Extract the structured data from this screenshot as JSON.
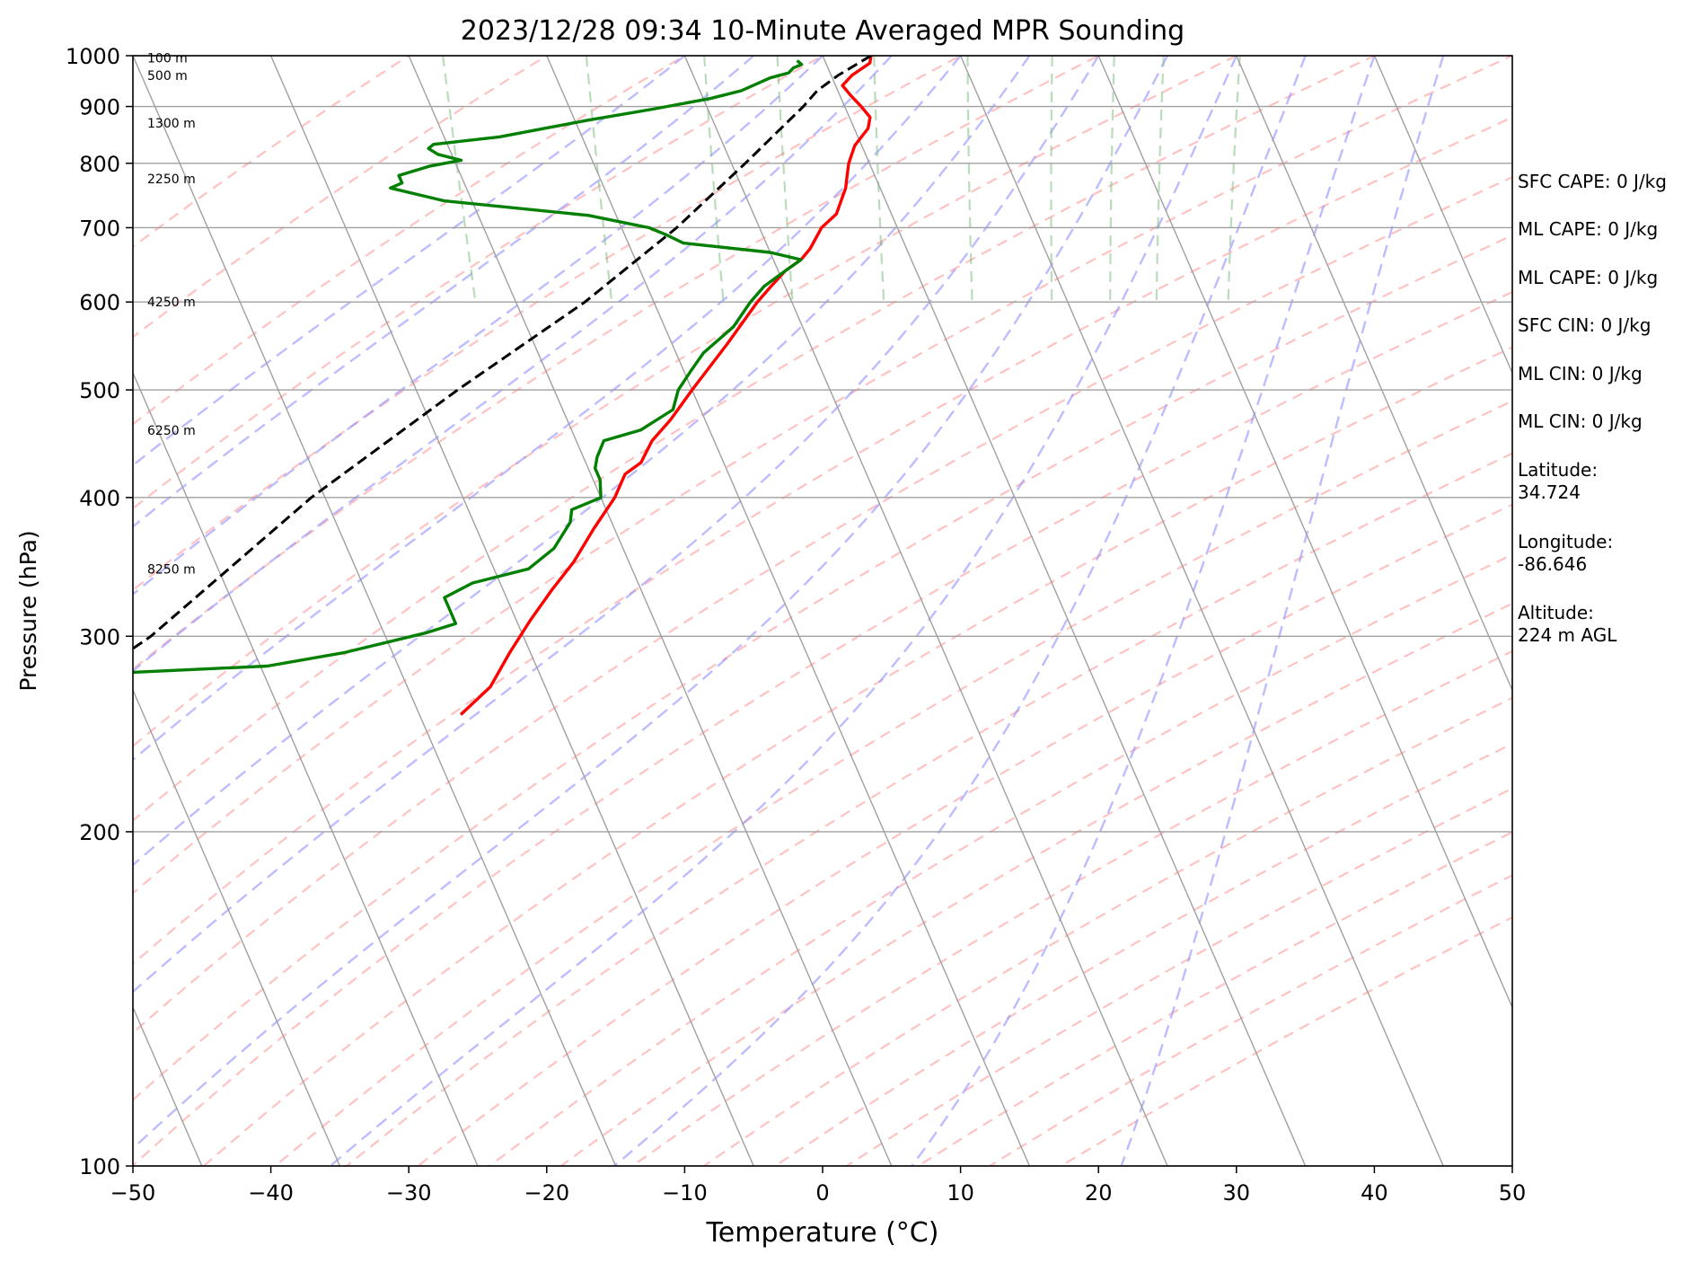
{
  "chart_data": {
    "type": "line",
    "title": "2023/12/28 09:34 10-Minute Averaged MPR Sounding",
    "xlabel": "Temperature (°C)",
    "ylabel": "Pressure (hPa)",
    "xlim": [
      -50,
      50
    ],
    "ylim": [
      1000,
      100
    ],
    "y_scale": "log",
    "skew_t": true,
    "grid": true,
    "x_ticks": [
      "−50",
      "−40",
      "−30",
      "−20",
      "−10",
      "0",
      "10",
      "20",
      "30",
      "40",
      "50"
    ],
    "y_ticks": [
      "100",
      "200",
      "300",
      "400",
      "500",
      "600",
      "700",
      "800",
      "900",
      "1000"
    ],
    "height_labels": [
      {
        "text": "8250 m",
        "p": 345
      },
      {
        "text": "6250 m",
        "p": 460
      },
      {
        "text": "4250 m",
        "p": 600
      },
      {
        "text": "2250 m",
        "p": 775
      },
      {
        "text": "1300 m",
        "p": 870
      },
      {
        "text": "500 m",
        "p": 960
      },
      {
        "text": "100 m",
        "p": 995
      }
    ],
    "series": [
      {
        "color": "#ff0000",
        "points": [
          {
            "p": 1000,
            "t": 3.5
          },
          {
            "p": 985,
            "t": 3.2
          },
          {
            "p": 960,
            "t": 1.5
          },
          {
            "p": 940,
            "t": 0.5
          },
          {
            "p": 920,
            "t": 0.8
          },
          {
            "p": 900,
            "t": 1.2
          },
          {
            "p": 880,
            "t": 1.5
          },
          {
            "p": 860,
            "t": 1.0
          },
          {
            "p": 830,
            "t": -0.5
          },
          {
            "p": 800,
            "t": -1.5
          },
          {
            "p": 780,
            "t": -2.0
          },
          {
            "p": 760,
            "t": -2.5
          },
          {
            "p": 720,
            "t": -4.0
          },
          {
            "p": 700,
            "t": -5.5
          },
          {
            "p": 670,
            "t": -7.0
          },
          {
            "p": 655,
            "t": -8.0
          },
          {
            "p": 640,
            "t": -9.5
          },
          {
            "p": 620,
            "t": -11.0
          },
          {
            "p": 600,
            "t": -12.5
          },
          {
            "p": 550,
            "t": -16.0
          },
          {
            "p": 500,
            "t": -20.0
          },
          {
            "p": 470,
            "t": -22.5
          },
          {
            "p": 450,
            "t": -24.5
          },
          {
            "p": 430,
            "t": -26.0
          },
          {
            "p": 420,
            "t": -27.5
          },
          {
            "p": 400,
            "t": -29.0
          },
          {
            "p": 375,
            "t": -31.5
          },
          {
            "p": 350,
            "t": -34.0
          },
          {
            "p": 330,
            "t": -36.5
          },
          {
            "p": 310,
            "t": -39.0
          },
          {
            "p": 290,
            "t": -41.5
          },
          {
            "p": 270,
            "t": -44.0
          },
          {
            "p": 255,
            "t": -47.0
          }
        ]
      },
      {
        "color": "#007f00",
        "points": [
          {
            "p": 990,
            "t": -2.0
          },
          {
            "p": 982,
            "t": -1.8
          },
          {
            "p": 975,
            "t": -2.5
          },
          {
            "p": 965,
            "t": -3.0
          },
          {
            "p": 955,
            "t": -4.5
          },
          {
            "p": 945,
            "t": -5.5
          },
          {
            "p": 930,
            "t": -7.0
          },
          {
            "p": 915,
            "t": -9.5
          },
          {
            "p": 895,
            "t": -14.0
          },
          {
            "p": 875,
            "t": -19.0
          },
          {
            "p": 862,
            "t": -22.0
          },
          {
            "p": 845,
            "t": -26.0
          },
          {
            "p": 832,
            "t": -31.0
          },
          {
            "p": 825,
            "t": -31.5
          },
          {
            "p": 815,
            "t": -31.0
          },
          {
            "p": 805,
            "t": -29.5
          },
          {
            "p": 795,
            "t": -32.0
          },
          {
            "p": 780,
            "t": -34.5
          },
          {
            "p": 768,
            "t": -34.5
          },
          {
            "p": 760,
            "t": -35.5
          },
          {
            "p": 740,
            "t": -32.0
          },
          {
            "p": 718,
            "t": -22.0
          },
          {
            "p": 700,
            "t": -18.0
          },
          {
            "p": 690,
            "t": -17.0
          },
          {
            "p": 678,
            "t": -16.0
          },
          {
            "p": 665,
            "t": -10.0
          },
          {
            "p": 655,
            "t": -8.0
          },
          {
            "p": 640,
            "t": -9.5
          },
          {
            "p": 620,
            "t": -11.5
          },
          {
            "p": 600,
            "t": -13.0
          },
          {
            "p": 570,
            "t": -15.0
          },
          {
            "p": 540,
            "t": -18.0
          },
          {
            "p": 520,
            "t": -19.5
          },
          {
            "p": 500,
            "t": -21.0
          },
          {
            "p": 480,
            "t": -22.0
          },
          {
            "p": 460,
            "t": -25.0
          },
          {
            "p": 450,
            "t": -28.0
          },
          {
            "p": 435,
            "t": -29.0
          },
          {
            "p": 425,
            "t": -29.5
          },
          {
            "p": 415,
            "t": -29.5
          },
          {
            "p": 400,
            "t": -30.0
          },
          {
            "p": 390,
            "t": -32.5
          },
          {
            "p": 380,
            "t": -33.0
          },
          {
            "p": 360,
            "t": -35.0
          },
          {
            "p": 345,
            "t": -37.5
          },
          {
            "p": 335,
            "t": -42.0
          },
          {
            "p": 325,
            "t": -44.5
          },
          {
            "p": 318,
            "t": -44.5
          },
          {
            "p": 308,
            "t": -44.5
          },
          {
            "p": 302,
            "t": -47.0
          },
          {
            "p": 290,
            "t": -53.5
          },
          {
            "p": 282,
            "t": -59.5
          },
          {
            "p": 276,
            "t": -76.0
          }
        ]
      },
      {
        "color": "#000000",
        "dashed": true,
        "points": [
          {
            "p": 1000,
            "t": 3.5
          },
          {
            "p": 960,
            "t": 0.5
          },
          {
            "p": 930,
            "t": -1.5
          },
          {
            "p": 900,
            "t": -3.0
          },
          {
            "p": 800,
            "t": -9.0
          },
          {
            "p": 700,
            "t": -16.0
          },
          {
            "p": 600,
            "t": -25.0
          },
          {
            "p": 500,
            "t": -37.0
          },
          {
            "p": 400,
            "t": -51.0
          },
          {
            "p": 300,
            "t": -67.0
          },
          {
            "p": 270,
            "t": -74.0
          }
        ]
      }
    ]
  },
  "sidebar": [
    {
      "text": "SFC CAPE: 0 J/kg"
    },
    {
      "text": "ML CAPE: 0 J/kg"
    },
    {
      "text": "ML CAPE: 0 J/kg"
    },
    {
      "text": "SFC CIN: 0 J/kg"
    },
    {
      "text": "ML CIN: 0 J/kg"
    },
    {
      "text": "ML CIN: 0 J/kg"
    },
    {
      "text": "Latitude:\n34.724"
    },
    {
      "text": "Longitude:\n-86.646"
    },
    {
      "text": "Altitude:\n224 m AGL"
    }
  ],
  "colors": {
    "temperature": "#ff0000",
    "dewpoint": "#007f00",
    "parcel": "#000000",
    "dry_adiabat": "#ff8f8f",
    "moist_adiabat": "#8f8fff",
    "mixing_ratio": "#7fbf7f",
    "isotherm": "#a0a0a0"
  }
}
